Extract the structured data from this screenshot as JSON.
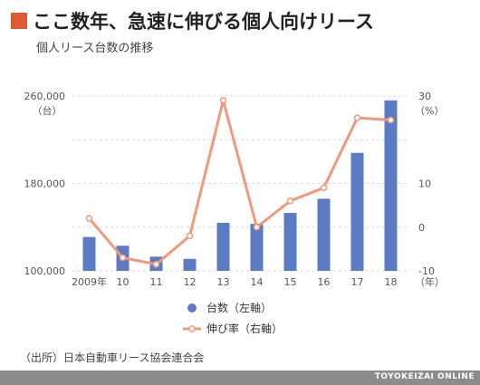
{
  "header": {
    "title": "ここ数年、急速に伸びる個人向けリース",
    "subtitle": "個人リース台数の推移"
  },
  "source": "（出所）日本自動車リース協会連合会",
  "brand": "TOYOKEIZAI ONLINE",
  "colors": {
    "title_square": "#e05a33",
    "bar": "#5b7cc4",
    "line": "#ee9a7c",
    "grid": "#d9d9d9",
    "footer": "#8c8c8c"
  },
  "chart_data": {
    "type": "bar+line",
    "categories": [
      "2009年",
      "10",
      "11",
      "12",
      "13",
      "14",
      "15",
      "16",
      "17",
      "18"
    ],
    "x_unit_label": "（年）",
    "left_axis": {
      "unit_label": "（台）",
      "range": [
        100000,
        260000
      ],
      "ticks": [
        100000,
        180000,
        260000
      ],
      "tick_labels": [
        "100,000",
        "180,000",
        "260,000"
      ]
    },
    "right_axis": {
      "unit_label": "（%）",
      "range": [
        -10,
        30
      ],
      "ticks": [
        -10,
        0,
        10,
        30
      ],
      "tick_labels": [
        "-10",
        "0",
        "10",
        "30"
      ]
    },
    "grid": [
      100000,
      140000,
      180000,
      220000,
      260000
    ],
    "series": [
      {
        "name": "台数（左軸）",
        "type": "bar",
        "axis": "left",
        "values": [
          131000,
          123000,
          113000,
          111000,
          144000,
          143000,
          153000,
          166000,
          208000,
          256000
        ]
      },
      {
        "name": "伸び率（右軸）",
        "type": "line",
        "axis": "right",
        "values": [
          2,
          -7,
          -8.5,
          -2,
          29,
          0,
          6,
          9,
          25,
          24.5
        ]
      }
    ],
    "legend": "bottom-center"
  }
}
